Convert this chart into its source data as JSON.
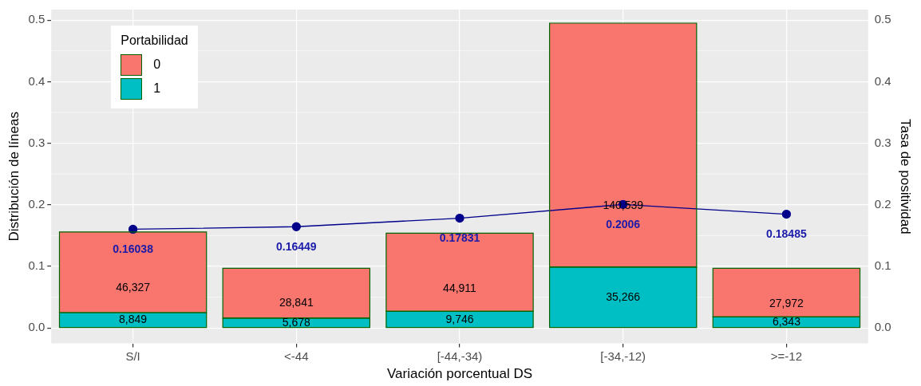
{
  "chart_data": {
    "type": "bar",
    "stacked": true,
    "xlabel": "Variación porcentual DS",
    "ylabel": "Distribución de líneas",
    "y2label": "Tasa de positividad",
    "legend_title": "Portabilidad",
    "legend": "top left",
    "grid": true,
    "categories": [
      "S/I",
      "<-44",
      "[-44,-34)",
      "[-34,-12)",
      ">=-12"
    ],
    "ylim": [
      -0.025,
      0.517
    ],
    "yticks": [
      {
        "value": 0,
        "label": "0.0"
      },
      {
        "value": 0.1,
        "label": "0.1"
      },
      {
        "value": 0.2,
        "label": "0.2"
      },
      {
        "value": 0.3,
        "label": "0.3"
      },
      {
        "value": 0.4,
        "label": "0.4"
      },
      {
        "value": 0.5,
        "label": "0.5"
      }
    ],
    "y2lim": [
      -0.025,
      0.517
    ],
    "y2ticks": [
      {
        "value": 0,
        "label": "0.0"
      },
      {
        "value": 0.1,
        "label": "0.1"
      },
      {
        "value": 0.2,
        "label": "0.2"
      },
      {
        "value": 0.3,
        "label": "0.3"
      },
      {
        "value": 0.4,
        "label": "0.4"
      },
      {
        "value": 0.5,
        "label": "0.5"
      }
    ],
    "series": [
      {
        "name": "1",
        "color": "#00bfc4",
        "values": [
          0.025,
          0.016,
          0.027,
          0.099,
          0.018
        ]
      },
      {
        "name": "0",
        "color": "#f8766d",
        "values": [
          0.131,
          0.081,
          0.127,
          0.396,
          0.079
        ]
      },
      {
        "type": "line",
        "color": "#00008b",
        "marker": "circle",
        "values": [
          0.16038,
          0.16449,
          0.17831,
          0.2006,
          0.18485
        ],
        "value_labels": [
          "0.16038",
          "0.16449",
          "0.17831",
          "0.2006",
          "0.18485"
        ]
      }
    ],
    "annotations": [
      "8,849",
      "5,678",
      "9,746",
      "35,266",
      "6,343",
      "46,327",
      "28,841",
      "44,911",
      "140,539",
      "27,972"
    ]
  }
}
